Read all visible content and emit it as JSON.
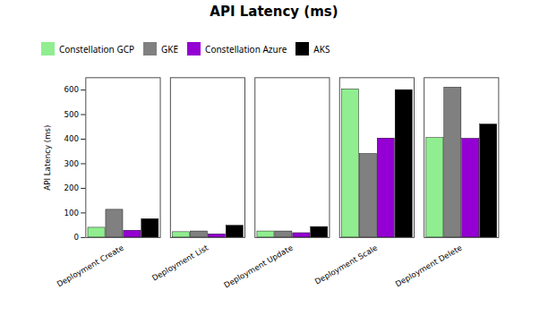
{
  "chart_data": {
    "type": "bar",
    "title": "API Latency (ms)",
    "ylabel": "API Latency (ms)",
    "categories": [
      "Deployment Create",
      "Deployment List",
      "Deployment Update",
      "Deployment Scale",
      "Deployment Delete"
    ],
    "series": [
      {
        "name": "Constellation GCP",
        "color": "#90EE90",
        "values": [
          40,
          22,
          25,
          603,
          405
        ]
      },
      {
        "name": "GKE",
        "color": "#808080",
        "values": [
          113,
          25,
          25,
          340,
          610
        ]
      },
      {
        "name": "Constellation Azure",
        "color": "#9400D3",
        "values": [
          28,
          13,
          18,
          403,
          402
        ]
      },
      {
        "name": "AKS",
        "color": "#000000",
        "values": [
          75,
          48,
          43,
          600,
          460
        ]
      }
    ],
    "ylim": [
      0,
      650
    ],
    "yticks": [
      0,
      100,
      200,
      300,
      400,
      500,
      600
    ],
    "legend": "upper left",
    "grid": false
  }
}
